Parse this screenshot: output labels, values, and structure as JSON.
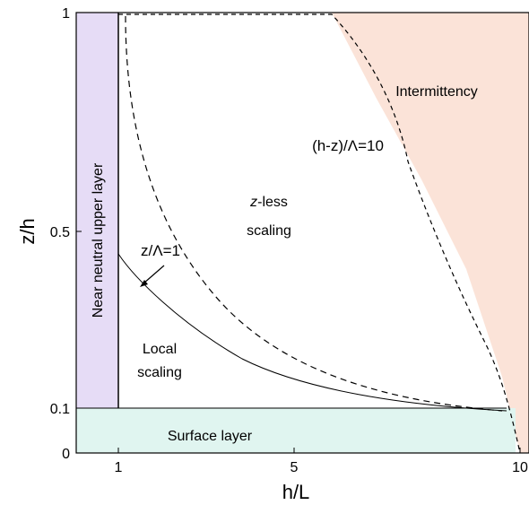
{
  "figure": {
    "xlabel": "h/L",
    "ylabel": "z/h",
    "x_ticks": [
      "1",
      "5",
      "10"
    ],
    "y_ticks": [
      "0",
      "0.1",
      "0.5",
      "1"
    ],
    "regions": {
      "near_neutral": "Near neutral upper layer",
      "intermittency": "Intermittency",
      "z_less_italic": "z",
      "z_less_rest": "-less",
      "z_less_line2": "scaling",
      "local_line1": "Local",
      "local_line2": "scaling",
      "surface": "Surface layer"
    },
    "curves": {
      "upper_boundary": "(h-z)/Λ=10",
      "local_boundary": "z/Λ=1"
    },
    "colors": {
      "near_neutral_fill": "#e6dcf6",
      "intermittency_fill": "#fbe3d8",
      "surface_fill": "#e0f5f0",
      "line": "#000000"
    }
  }
}
